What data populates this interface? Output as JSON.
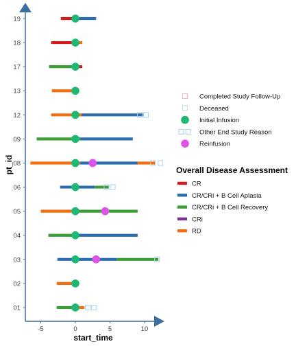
{
  "chart_data": {
    "type": "swimmer",
    "xlabel": "start_time",
    "ylabel": "pt_id",
    "xlim": [
      -7.5,
      12
    ],
    "x_ticks": [
      -5,
      0,
      5,
      10
    ],
    "patients": [
      "19",
      "18",
      "17",
      "13",
      "12",
      "09",
      "08",
      "06",
      "05",
      "04",
      "03",
      "02",
      "01"
    ],
    "colors": {
      "CR": "#d7191c",
      "CR/CRi + B Cell Aplasia": "#2c6cb0",
      "CR/CRi + B Cell Recovery": "#3a9e35",
      "CRi": "#7b3294",
      "RD": "#f36f11",
      "Initial Infusion": "#1db872",
      "Reinfusion": "#df52e6",
      "Completed Study Follow-Up": "#f2b8c6",
      "Deceased": "#c2e6c2",
      "Other End Study Reason": "#a9d3ea",
      "axis": "#3b6fa0"
    },
    "segments": [
      {
        "pt": "19",
        "start": -2.1,
        "end": -0.4,
        "response": "CR"
      },
      {
        "pt": "19",
        "start": -0.4,
        "end": 3.0,
        "response": "CR/CRi + B Cell Aplasia"
      },
      {
        "pt": "18",
        "start": -3.5,
        "end": 0.0,
        "response": "CR"
      },
      {
        "pt": "18",
        "start": 0.0,
        "end": 1.0,
        "response": "RD"
      },
      {
        "pt": "17",
        "start": -3.8,
        "end": 0.3,
        "response": "CR/CRi + B Cell Recovery"
      },
      {
        "pt": "17",
        "start": 0.3,
        "end": 1.0,
        "response": "CR"
      },
      {
        "pt": "13",
        "start": -3.4,
        "end": 0.0,
        "response": "RD"
      },
      {
        "pt": "12",
        "start": -3.5,
        "end": 0.9,
        "response": "RD"
      },
      {
        "pt": "12",
        "start": 0.9,
        "end": 9.8,
        "response": "CR/CRi + B Cell Aplasia"
      },
      {
        "pt": "09",
        "start": -5.6,
        "end": 0.7,
        "response": "CR/CRi + B Cell Recovery"
      },
      {
        "pt": "09",
        "start": 0.7,
        "end": 8.3,
        "response": "CR/CRi + B Cell Aplasia"
      },
      {
        "pt": "08",
        "start": -6.5,
        "end": 0.7,
        "response": "RD"
      },
      {
        "pt": "08",
        "start": 0.7,
        "end": 9.0,
        "response": "CR/CRi + B Cell Aplasia"
      },
      {
        "pt": "08",
        "start": 9.0,
        "end": 11.5,
        "response": "RD"
      },
      {
        "pt": "06",
        "start": -2.2,
        "end": 2.8,
        "response": "CR/CRi + B Cell Aplasia"
      },
      {
        "pt": "06",
        "start": 2.8,
        "end": 4.8,
        "response": "CR/CRi + B Cell Recovery"
      },
      {
        "pt": "05",
        "start": -5.0,
        "end": 0.0,
        "response": "RD"
      },
      {
        "pt": "05",
        "start": 0.0,
        "end": 9.0,
        "response": "CR/CRi + B Cell Recovery"
      },
      {
        "pt": "04",
        "start": -3.9,
        "end": 0.0,
        "response": "CR/CRi + B Cell Recovery"
      },
      {
        "pt": "04",
        "start": 0.0,
        "end": 9.0,
        "response": "CR/CRi + B Cell Aplasia"
      },
      {
        "pt": "03",
        "start": -2.6,
        "end": 6.0,
        "response": "CR/CRi + B Cell Aplasia"
      },
      {
        "pt": "03",
        "start": 6.0,
        "end": 12.0,
        "response": "CR/CRi + B Cell Recovery"
      },
      {
        "pt": "02",
        "start": -2.7,
        "end": 0.0,
        "response": "RD"
      },
      {
        "pt": "01",
        "start": -2.7,
        "end": 0.5,
        "response": "CR/CRi + B Cell Recovery"
      },
      {
        "pt": "01",
        "start": 0.5,
        "end": 1.3,
        "response": "RD"
      }
    ],
    "events": [
      {
        "pt": "19",
        "x": 0,
        "type": "Initial Infusion"
      },
      {
        "pt": "18",
        "x": 0,
        "type": "Initial Infusion"
      },
      {
        "pt": "17",
        "x": 0,
        "type": "Initial Infusion"
      },
      {
        "pt": "13",
        "x": 0,
        "type": "Initial Infusion"
      },
      {
        "pt": "12",
        "x": 0,
        "type": "Initial Infusion"
      },
      {
        "pt": "09",
        "x": 0,
        "type": "Initial Infusion"
      },
      {
        "pt": "08",
        "x": 0,
        "type": "Initial Infusion"
      },
      {
        "pt": "06",
        "x": 0,
        "type": "Initial Infusion"
      },
      {
        "pt": "05",
        "x": 0,
        "type": "Initial Infusion"
      },
      {
        "pt": "04",
        "x": 0,
        "type": "Initial Infusion"
      },
      {
        "pt": "03",
        "x": 0,
        "type": "Initial Infusion"
      },
      {
        "pt": "02",
        "x": 0,
        "type": "Initial Infusion"
      },
      {
        "pt": "01",
        "x": 0,
        "type": "Initial Infusion"
      },
      {
        "pt": "08",
        "x": 2.5,
        "type": "Reinfusion"
      },
      {
        "pt": "05",
        "x": 4.3,
        "type": "Reinfusion"
      },
      {
        "pt": "03",
        "x": 3.0,
        "type": "Reinfusion"
      }
    ],
    "end_markers": [
      {
        "pt": "12",
        "x": 9.3,
        "type": "Other End Study Reason"
      },
      {
        "pt": "12",
        "x": 10.2,
        "type": "Other End Study Reason"
      },
      {
        "pt": "08",
        "x": 11.2,
        "type": "Other End Study Reason"
      },
      {
        "pt": "08",
        "x": 12.3,
        "type": "Other End Study Reason"
      },
      {
        "pt": "06",
        "x": 4.5,
        "type": "Other End Study Reason"
      },
      {
        "pt": "06",
        "x": 5.4,
        "type": "Other End Study Reason"
      },
      {
        "pt": "03",
        "x": 11.8,
        "type": "Other End Study Reason"
      },
      {
        "pt": "01",
        "x": 1.8,
        "type": "Other End Study Reason"
      },
      {
        "pt": "01",
        "x": 2.7,
        "type": "Other End Study Reason"
      }
    ],
    "legend_markers": [
      {
        "label": "Completed Study Follow-Up",
        "shape": "square-open"
      },
      {
        "label": "Deceased",
        "shape": "square-open"
      },
      {
        "label": "Initial Infusion",
        "shape": "circle"
      },
      {
        "label": "Other End Study Reason",
        "shape": "double-square-open"
      },
      {
        "label": "Reinfusion",
        "shape": "circle"
      }
    ],
    "legend_response_title": "Overall Disease Assessment",
    "legend_responses": [
      "CR",
      "CR/CRi + B Cell Aplasia",
      "CR/CRi + B Cell Recovery",
      "CRi",
      "RD"
    ]
  }
}
